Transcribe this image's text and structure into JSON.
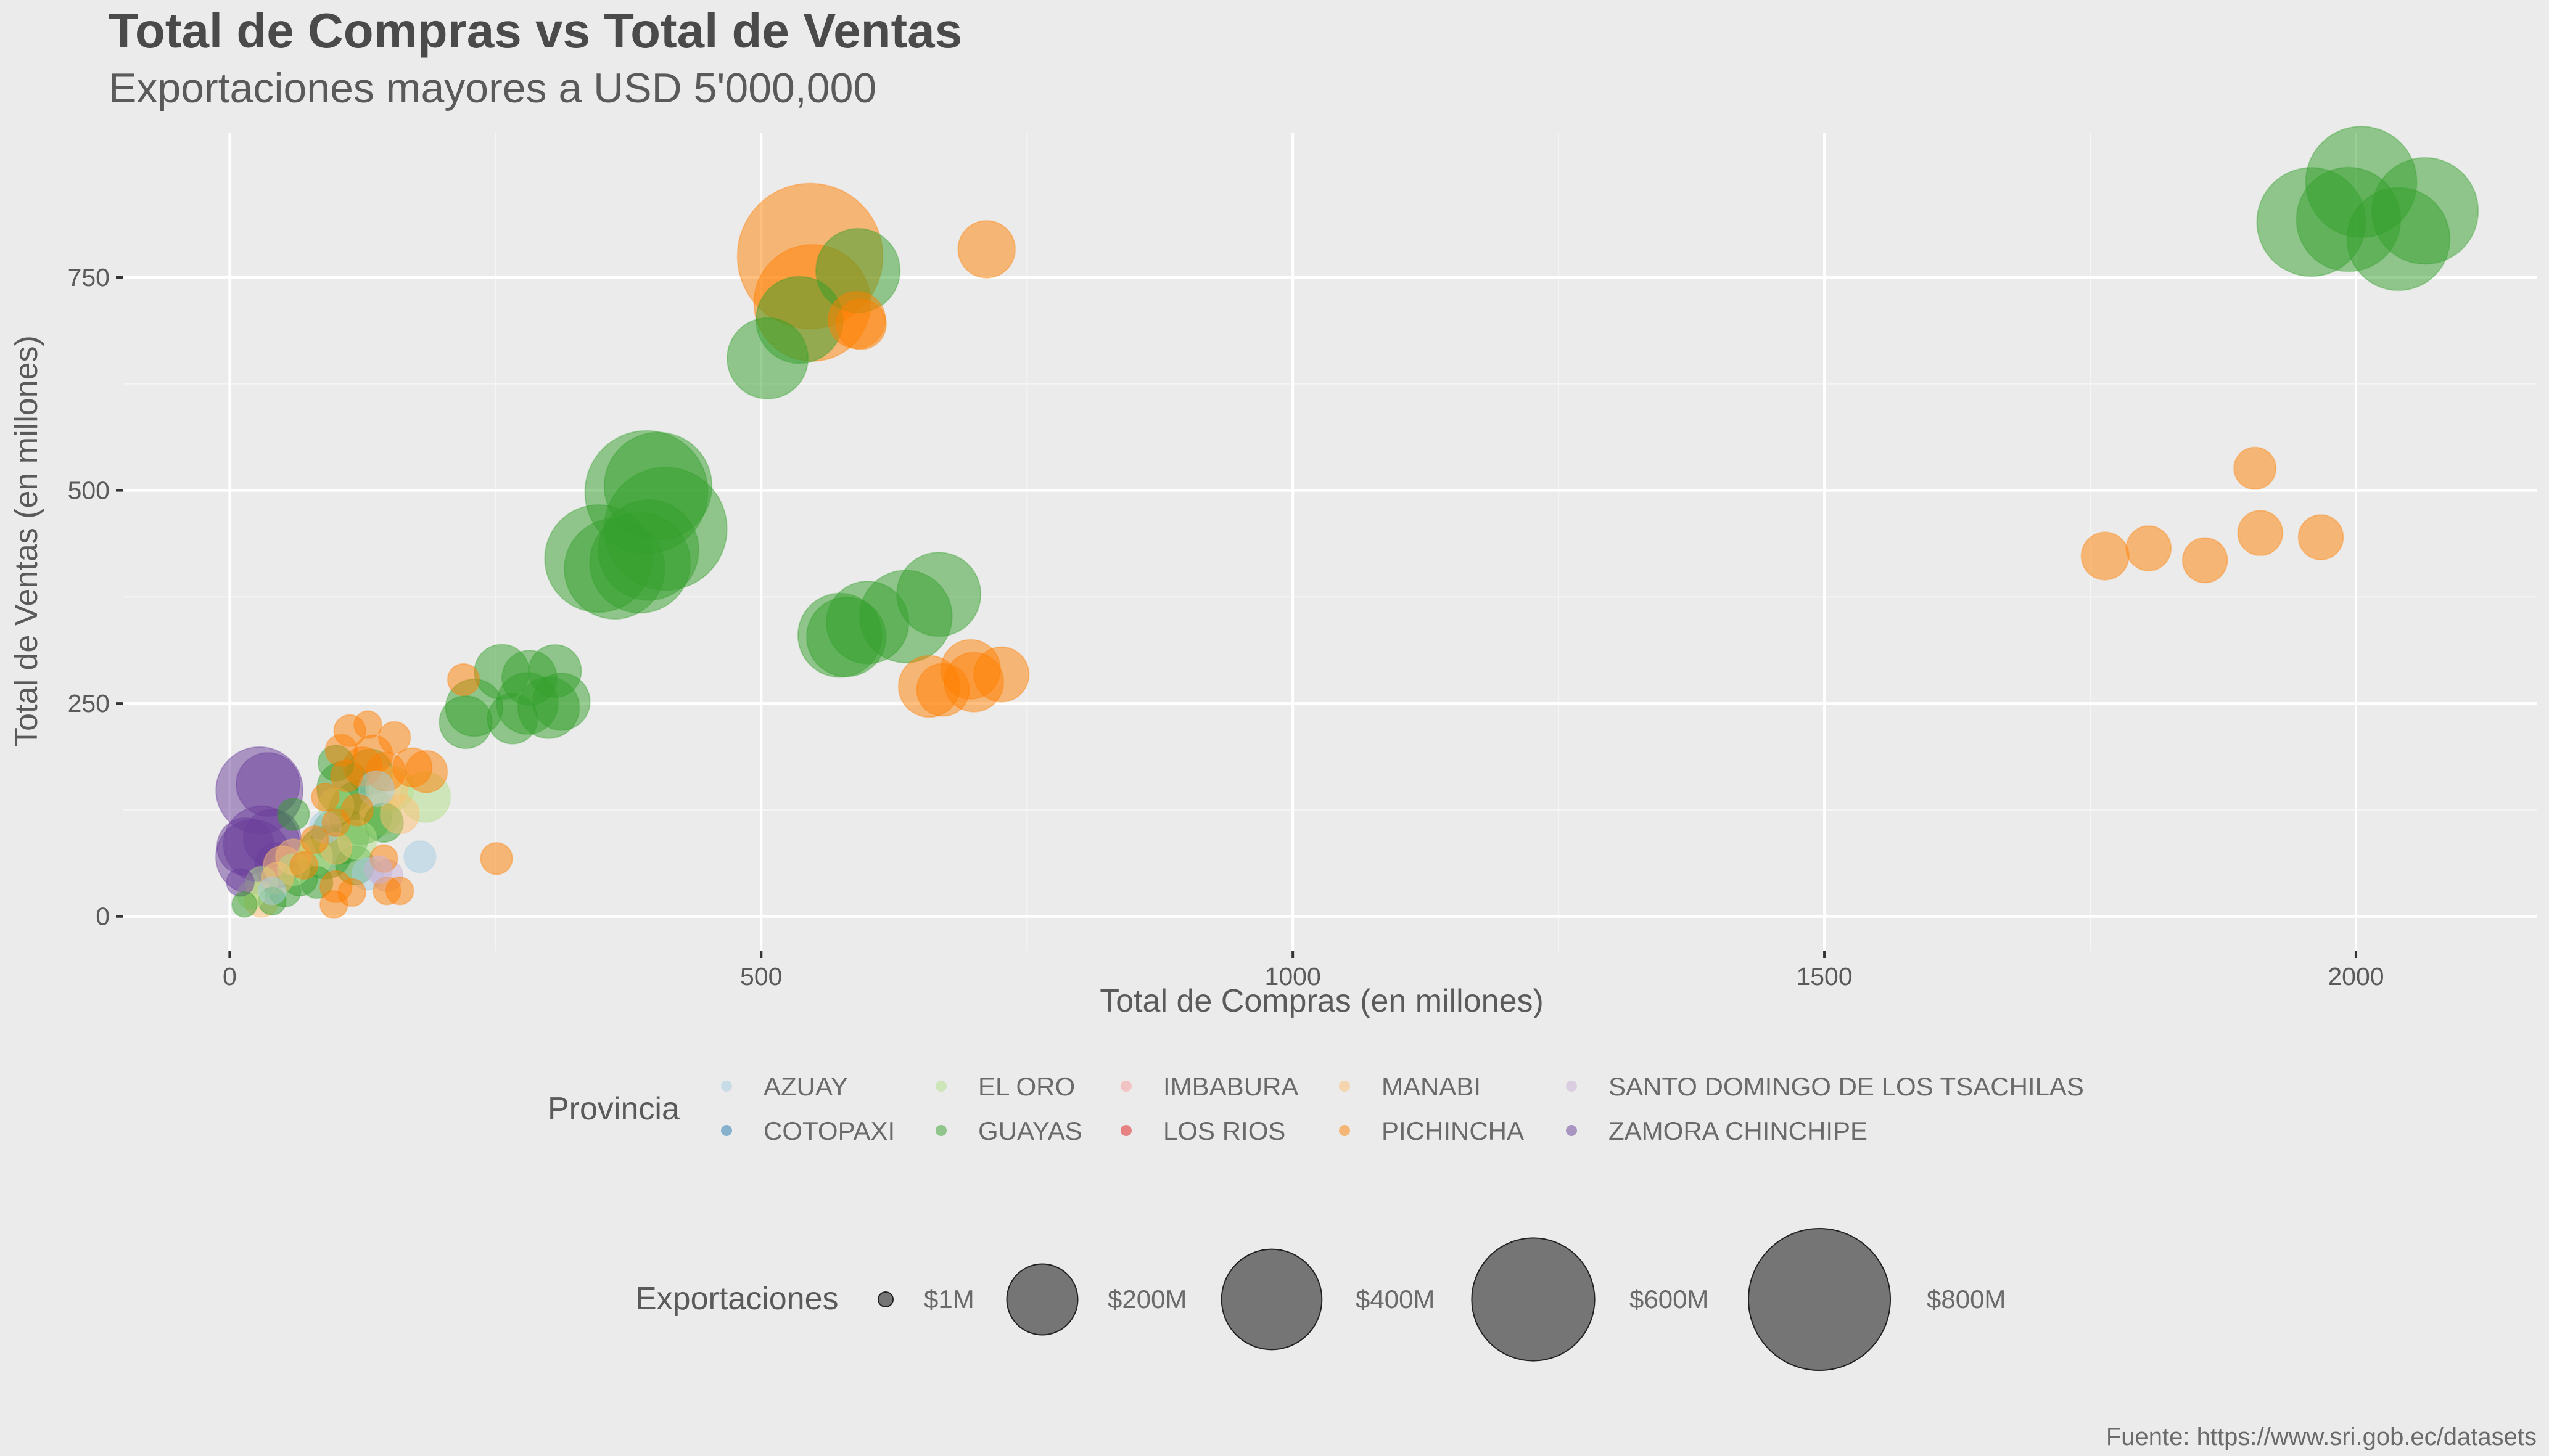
{
  "chart_data": {
    "type": "scatter",
    "title": "Total de Compras vs Total de Ventas",
    "subtitle": "Exportaciones mayores a USD 5'000,000",
    "xlabel": "Total de Compras (en millones)",
    "ylabel": "Total de Ventas (en millones)",
    "xlim": [
      -100,
      2170
    ],
    "ylim": [
      -40,
      920
    ],
    "x_ticks": [
      0,
      500,
      1000,
      1500,
      2000
    ],
    "y_ticks": [
      0,
      250,
      500,
      750
    ],
    "x_tick_labels": [
      "0",
      "500",
      "1000",
      "1500",
      "2000"
    ],
    "y_tick_labels": [
      "0",
      "250",
      "500",
      "750"
    ],
    "grid": true,
    "caption": "Fuente: https://www.sri.gob.ec/datasets",
    "legend_color": {
      "title": "Provincia",
      "position": "bottom",
      "entries": [
        {
          "name": "AZUAY",
          "color": "#a6cee3"
        },
        {
          "name": "COTOPAXI",
          "color": "#1f78b4"
        },
        {
          "name": "EL ORO",
          "color": "#b2df8a"
        },
        {
          "name": "GUAYAS",
          "color": "#33a02c"
        },
        {
          "name": "IMBABURA",
          "color": "#fb9a99"
        },
        {
          "name": "LOS RIOS",
          "color": "#e31a1c"
        },
        {
          "name": "MANABI",
          "color": "#fdbf6f"
        },
        {
          "name": "PICHINCHA",
          "color": "#ff7f00"
        },
        {
          "name": "SANTO DOMINGO DE LOS TSACHILAS",
          "color": "#cab2d6"
        },
        {
          "name": "ZAMORA CHINCHIPE",
          "color": "#6a3d9a"
        }
      ]
    },
    "legend_size": {
      "title": "Exportaciones",
      "position": "bottom",
      "entries": [
        {
          "label": "$1M",
          "value": 1
        },
        {
          "label": "$200M",
          "value": 200
        },
        {
          "label": "$400M",
          "value": 400
        },
        {
          "label": "$600M",
          "value": 600
        },
        {
          "label": "$800M",
          "value": 800
        }
      ]
    },
    "series": [
      {
        "name": "GUAYAS",
        "color": "#33a02c",
        "points": [
          [
            2005,
            862,
            490
          ],
          [
            1958,
            815,
            470
          ],
          [
            2065,
            828,
            450
          ],
          [
            1993,
            818,
            430
          ],
          [
            2040,
            795,
            420
          ],
          [
            591,
            758,
            280
          ],
          [
            536,
            700,
            300
          ],
          [
            506,
            655,
            260
          ],
          [
            392,
            498,
            600
          ],
          [
            403,
            505,
            460
          ],
          [
            410,
            455,
            600
          ],
          [
            347,
            420,
            460
          ],
          [
            362,
            408,
            400
          ],
          [
            386,
            415,
            400
          ],
          [
            394,
            430,
            400
          ],
          [
            667,
            378,
            280
          ],
          [
            636,
            352,
            340
          ],
          [
            600,
            345,
            270
          ],
          [
            574,
            330,
            280
          ],
          [
            580,
            328,
            250
          ],
          [
            256,
            287,
            120
          ],
          [
            282,
            280,
            120
          ],
          [
            306,
            288,
            110
          ],
          [
            230,
            245,
            130
          ],
          [
            280,
            250,
            150
          ],
          [
            300,
            245,
            150
          ],
          [
            312,
            252,
            130
          ],
          [
            222,
            228,
            110
          ],
          [
            266,
            232,
            100
          ],
          [
            108,
            150,
            120
          ],
          [
            123,
            122,
            160
          ],
          [
            104,
            95,
            130
          ],
          [
            132,
            170,
            80
          ],
          [
            90,
            75,
            110
          ],
          [
            118,
            60,
            60
          ],
          [
            66,
            45,
            50
          ],
          [
            52,
            30,
            40
          ],
          [
            40,
            18,
            30
          ],
          [
            14,
            14,
            25
          ],
          [
            82,
            40,
            40
          ],
          [
            145,
            110,
            60
          ],
          [
            100,
            180,
            50
          ],
          [
            60,
            120,
            40
          ]
        ]
      },
      {
        "name": "PICHINCHA",
        "color": "#ff7f00",
        "points": [
          [
            546,
            775,
            840
          ],
          [
            548,
            720,
            540
          ],
          [
            712,
            783,
            130
          ],
          [
            590,
            700,
            130
          ],
          [
            594,
            695,
            100
          ],
          [
            1905,
            526,
            70
          ],
          [
            1910,
            450,
            80
          ],
          [
            1967,
            445,
            80
          ],
          [
            1764,
            423,
            90
          ],
          [
            1805,
            432,
            80
          ],
          [
            1858,
            418,
            80
          ],
          [
            697,
            290,
            140
          ],
          [
            726,
            284,
            120
          ],
          [
            700,
            275,
            140
          ],
          [
            658,
            270,
            150
          ],
          [
            671,
            266,
            110
          ],
          [
            220,
            278,
            40
          ],
          [
            251,
            68,
            40
          ],
          [
            113,
            218,
            40
          ],
          [
            130,
            225,
            30
          ],
          [
            155,
            210,
            40
          ],
          [
            105,
            195,
            40
          ],
          [
            135,
            190,
            60
          ],
          [
            125,
            176,
            60
          ],
          [
            110,
            165,
            40
          ],
          [
            147,
            170,
            60
          ],
          [
            172,
            175,
            60
          ],
          [
            185,
            170,
            70
          ],
          [
            90,
            140,
            30
          ],
          [
            100,
            110,
            30
          ],
          [
            80,
            90,
            30
          ],
          [
            70,
            60,
            30
          ],
          [
            100,
            35,
            40
          ],
          [
            115,
            28,
            30
          ],
          [
            98,
            14,
            30
          ],
          [
            148,
            30,
            30
          ],
          [
            160,
            30,
            30
          ],
          [
            145,
            68,
            30
          ],
          [
            120,
            125,
            40
          ]
        ]
      },
      {
        "name": "EL ORO",
        "color": "#b2df8a",
        "points": [
          [
            184,
            140,
            100
          ],
          [
            152,
            150,
            80
          ],
          [
            142,
            120,
            70
          ],
          [
            120,
            90,
            60
          ],
          [
            80,
            70,
            50
          ],
          [
            60,
            55,
            40
          ],
          [
            30,
            40,
            40
          ],
          [
            20,
            25,
            30
          ],
          [
            100,
            130,
            50
          ]
        ]
      },
      {
        "name": "MANABI",
        "color": "#fdbf6f",
        "points": [
          [
            148,
            150,
            70
          ],
          [
            160,
            120,
            60
          ],
          [
            60,
            70,
            50
          ],
          [
            50,
            60,
            60
          ],
          [
            30,
            20,
            50
          ],
          [
            100,
            80,
            40
          ],
          [
            45,
            45,
            40
          ]
        ]
      },
      {
        "name": "AZUAY",
        "color": "#a6cee3",
        "points": [
          [
            179,
            70,
            40
          ],
          [
            138,
            150,
            50
          ],
          [
            130,
            50,
            40
          ],
          [
            90,
            105,
            40
          ],
          [
            40,
            30,
            30
          ]
        ]
      },
      {
        "name": "SANTO DOMINGO DE LOS TSACHILAS",
        "color": "#cab2d6",
        "points": [
          [
            148,
            48,
            40
          ],
          [
            140,
            55,
            30
          ]
        ]
      },
      {
        "name": "ZAMORA CHINCHIPE",
        "color": "#6a3d9a",
        "points": [
          [
            28,
            148,
            300
          ],
          [
            36,
            155,
            160
          ],
          [
            30,
            85,
            230
          ],
          [
            15,
            82,
            130
          ],
          [
            40,
            92,
            130
          ],
          [
            22,
            70,
            220
          ],
          [
            45,
            60,
            80
          ],
          [
            10,
            40,
            30
          ]
        ]
      }
    ]
  }
}
